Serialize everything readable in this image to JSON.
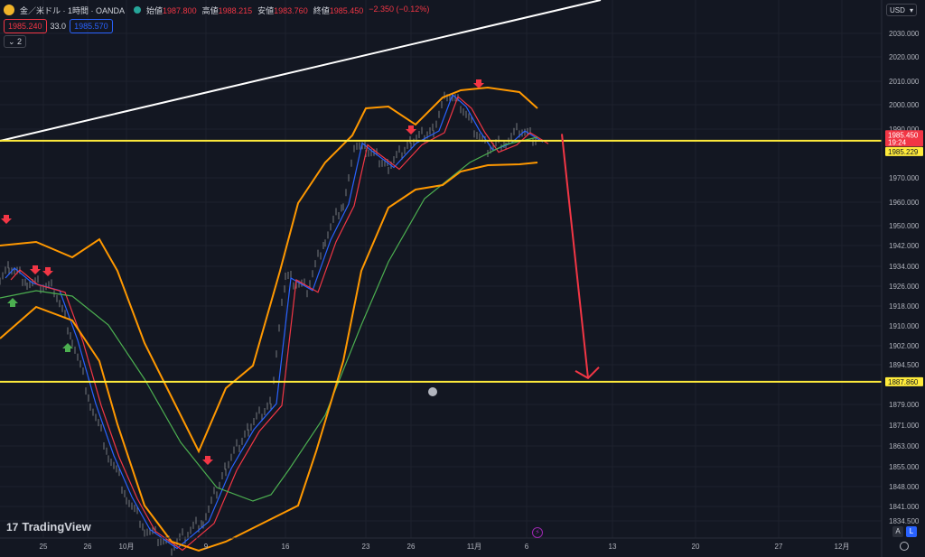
{
  "header": {
    "symbol_title": "金／米ドル · 1時間 · OANDA",
    "ohlc": [
      {
        "label": "始値",
        "value": "1987.800"
      },
      {
        "label": "高値",
        "value": "1988.215"
      },
      {
        "label": "安値",
        "value": "1983.760"
      },
      {
        "label": "終値",
        "value": "1985.450"
      }
    ],
    "change": "−2.350 (−0.12%)",
    "sell_price": "1985.240",
    "spread": "33.0",
    "buy_price": "1985.570",
    "indicators_count": "2"
  },
  "currency_selector": "USD",
  "logo_text": "TradingView",
  "logo_mark": "17",
  "buttons": {
    "auto": "A",
    "log": "L"
  },
  "colors": {
    "background": "#131722",
    "bollinger": "#ff9800",
    "ma_long": "#4caf50",
    "ma_red": "#f23645",
    "ma_blue": "#2962ff",
    "horizontal_line": "#ffeb3b",
    "trendline": "#ffffff",
    "arrow": "#f23645",
    "sell_signal": "#f23645",
    "buy_signal": "#4caf50"
  },
  "chart_data": {
    "type": "line",
    "symbol": "XAU/USD",
    "timeframe": "1H",
    "y_axis": {
      "scale": "log",
      "ticks": [
        "2030.000",
        "2020.000",
        "2010.000",
        "2000.000",
        "1990.000",
        "1970.000",
        "1960.000",
        "1950.000",
        "1942.000",
        "1934.000",
        "1926.000",
        "1918.000",
        "1910.000",
        "1902.000",
        "1894.500",
        "1879.000",
        "1871.000",
        "1863.000",
        "1855.000",
        "1848.000",
        "1841.000",
        "1834.500"
      ],
      "range": [
        1830,
        2040
      ]
    },
    "x_axis": {
      "ticks": [
        "25",
        "26",
        "10月",
        "9",
        "16",
        "23",
        "26",
        "11月",
        "6",
        "13",
        "20",
        "27",
        "12月"
      ]
    },
    "price_labels": [
      {
        "value": "1985.450",
        "sub": "19:24",
        "color": "#f23645"
      },
      {
        "value": "1985.229",
        "color": "#ffeb3b"
      },
      {
        "value": "1887.860",
        "color": "#ffeb3b"
      }
    ],
    "horizontal_lines": [
      1985.229,
      1887.86
    ],
    "close_price": [
      {
        "x": "25",
        "y": 1930
      },
      {
        "x": "26",
        "y": 1925
      },
      {
        "x": "10月",
        "y": 1845
      },
      {
        "x": "9",
        "y": 1835
      },
      {
        "x": "16",
        "y": 1930
      },
      {
        "x": "23",
        "y": 1985
      },
      {
        "x": "26",
        "y": 1990
      },
      {
        "x": "11月",
        "y": 1985
      },
      {
        "x": "6",
        "y": 1985.45
      }
    ],
    "projection": {
      "from": 1988,
      "to": 1887.86,
      "direction": "down"
    },
    "signals": {
      "sell": [
        "25",
        "26",
        "9",
        "26",
        "11月"
      ],
      "buy": [
        "25",
        "26"
      ]
    }
  }
}
